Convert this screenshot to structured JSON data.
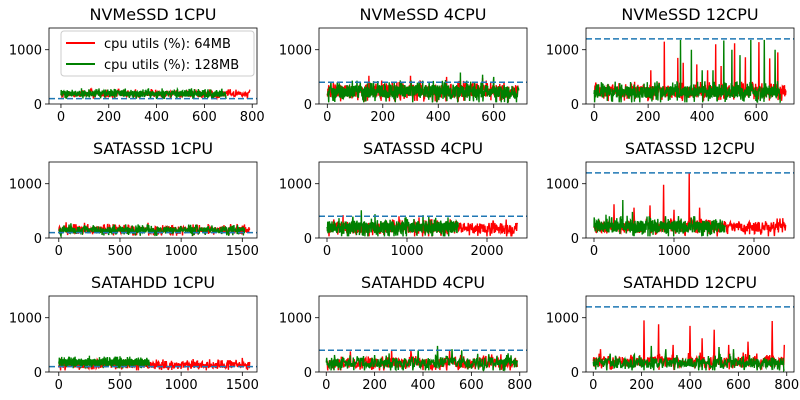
{
  "figure": {
    "legend": [
      {
        "label": "cpu utils (%): 64MB",
        "color": "#ff0000"
      },
      {
        "label": "cpu utils (%): 128MB",
        "color": "#008000"
      }
    ],
    "threshold_color": "#1f77b4"
  },
  "chart_data": [
    {
      "type": "line",
      "title": "NVMeSSD 1CPU",
      "xlim": [
        -50,
        820
      ],
      "ylim": [
        0,
        1400
      ],
      "xticks": [
        0,
        200,
        400,
        600,
        800
      ],
      "yticks": [
        0,
        1000
      ],
      "threshold": 100,
      "series": [
        {
          "name": "cpu utils (%): 64MB",
          "color": "#ff0000",
          "n": 790,
          "base": 185,
          "noise": 90,
          "spikes": []
        },
        {
          "name": "cpu utils (%): 128MB",
          "color": "#008000",
          "n": 690,
          "base": 190,
          "noise": 100,
          "spikes": []
        }
      ]
    },
    {
      "type": "line",
      "title": "NVMeSSD 4CPU",
      "xlim": [
        -30,
        720
      ],
      "ylim": [
        0,
        1400
      ],
      "xticks": [
        0,
        200,
        400,
        600
      ],
      "yticks": [
        0,
        1000
      ],
      "threshold": 400,
      "series": [
        {
          "name": "cpu utils (%): 64MB",
          "color": "#ff0000",
          "n": 690,
          "base": 240,
          "noise": 200,
          "spikes": [
            [
              150,
              520
            ],
            [
              300,
              520
            ],
            [
              430,
              500
            ],
            [
              560,
              480
            ]
          ]
        },
        {
          "name": "cpu utils (%): 128MB",
          "color": "#008000",
          "n": 690,
          "base": 230,
          "noise": 220,
          "spikes": [
            [
              480,
              580
            ],
            [
              560,
              540
            ],
            [
              600,
              500
            ]
          ]
        }
      ]
    },
    {
      "type": "line",
      "title": "NVMeSSD 12CPU",
      "xlim": [
        -30,
        740
      ],
      "ylim": [
        0,
        1400
      ],
      "xticks": [
        0,
        200,
        400,
        600
      ],
      "yticks": [
        0,
        1000
      ],
      "threshold": 1200,
      "series": [
        {
          "name": "cpu utils (%): 64MB",
          "color": "#ff0000",
          "n": 710,
          "base": 230,
          "noise": 180,
          "spikes": [
            [
              210,
              620
            ],
            [
              260,
              1150
            ],
            [
              310,
              850
            ],
            [
              330,
              760
            ],
            [
              380,
              730
            ],
            [
              420,
              620
            ],
            [
              450,
              1100
            ],
            [
              470,
              700
            ],
            [
              520,
              1120
            ],
            [
              560,
              860
            ],
            [
              610,
              1140
            ],
            [
              650,
              840
            ],
            [
              680,
              950
            ]
          ]
        },
        {
          "name": "cpu utils (%): 128MB",
          "color": "#008000",
          "n": 690,
          "base": 220,
          "noise": 200,
          "spikes": [
            [
              320,
              1180
            ],
            [
              360,
              1000
            ],
            [
              400,
              620
            ],
            [
              440,
              620
            ],
            [
              480,
              1170
            ],
            [
              510,
              1000
            ],
            [
              540,
              900
            ],
            [
              580,
              1180
            ],
            [
              630,
              1180
            ],
            [
              670,
              1000
            ],
            [
              690,
              900
            ]
          ]
        }
      ]
    },
    {
      "type": "line",
      "title": "SATASSD 1CPU",
      "xlim": [
        -80,
        1620
      ],
      "ylim": [
        0,
        1400
      ],
      "xticks": [
        0,
        500,
        1000,
        1500
      ],
      "yticks": [
        0,
        1000
      ],
      "threshold": 100,
      "series": [
        {
          "name": "cpu utils (%): 64MB",
          "color": "#ff0000",
          "n": 1560,
          "base": 150,
          "noise": 110,
          "spikes": [
            [
              60,
              290
            ],
            [
              210,
              280
            ],
            [
              400,
              260
            ],
            [
              730,
              280
            ],
            [
              1100,
              250
            ]
          ]
        },
        {
          "name": "cpu utils (%): 128MB",
          "color": "#008000",
          "n": 1520,
          "base": 145,
          "noise": 110,
          "spikes": [
            [
              100,
              270
            ],
            [
              650,
              250
            ]
          ]
        }
      ]
    },
    {
      "type": "line",
      "title": "SATASSD 4CPU",
      "xlim": [
        -100,
        2500
      ],
      "ylim": [
        0,
        1400
      ],
      "xticks": [
        0,
        1000,
        2000
      ],
      "yticks": [
        0,
        1000
      ],
      "threshold": 400,
      "series": [
        {
          "name": "cpu utils (%): 64MB",
          "color": "#ff0000",
          "n": 2380,
          "base": 180,
          "noise": 180,
          "spikes": [
            [
              200,
              420
            ],
            [
              900,
              400
            ],
            [
              1150,
              380
            ]
          ]
        },
        {
          "name": "cpu utils (%): 128MB",
          "color": "#008000",
          "n": 1640,
          "base": 200,
          "noise": 200,
          "spikes": [
            [
              430,
              510
            ],
            [
              600,
              440
            ],
            [
              1200,
              420
            ]
          ]
        }
      ]
    },
    {
      "type": "line",
      "title": "SATASSD 12CPU",
      "xlim": [
        -100,
        2500
      ],
      "ylim": [
        0,
        1400
      ],
      "xticks": [
        0,
        1000,
        2000
      ],
      "yticks": [
        0,
        1000
      ],
      "threshold": 1200,
      "series": [
        {
          "name": "cpu utils (%): 64MB",
          "color": "#ff0000",
          "n": 2400,
          "base": 200,
          "noise": 180,
          "spikes": [
            [
              250,
              620
            ],
            [
              500,
              560
            ],
            [
              700,
              600
            ],
            [
              870,
              980
            ],
            [
              1000,
              520
            ],
            [
              1190,
              1190
            ],
            [
              1320,
              560
            ]
          ]
        },
        {
          "name": "cpu utils (%): 128MB",
          "color": "#008000",
          "n": 1640,
          "base": 210,
          "noise": 200,
          "spikes": [
            [
              150,
              430
            ],
            [
              360,
              700
            ],
            [
              480,
              480
            ]
          ]
        }
      ]
    },
    {
      "type": "line",
      "title": "SATAHDD 1CPU",
      "xlim": [
        -80,
        1620
      ],
      "ylim": [
        0,
        1400
      ],
      "xticks": [
        0,
        500,
        1000,
        1500
      ],
      "yticks": [
        0,
        1000
      ],
      "threshold": 100,
      "series": [
        {
          "name": "cpu utils (%): 64MB",
          "color": "#ff0000",
          "n": 1560,
          "base": 130,
          "noise": 110,
          "spikes": [
            [
              20,
              250
            ],
            [
              800,
              230
            ],
            [
              1100,
              240
            ],
            [
              1500,
              260
            ]
          ]
        },
        {
          "name": "cpu utils (%): 128MB",
          "color": "#008000",
          "n": 740,
          "base": 175,
          "noise": 110,
          "spikes": [
            [
              250,
              300
            ],
            [
              500,
              290
            ]
          ]
        }
      ]
    },
    {
      "type": "line",
      "title": "SATAHDD 4CPU",
      "xlim": [
        -30,
        830
      ],
      "ylim": [
        0,
        1400
      ],
      "xticks": [
        0,
        200,
        400,
        600,
        800
      ],
      "yticks": [
        0,
        1000
      ],
      "threshold": 400,
      "series": [
        {
          "name": "cpu utils (%): 64MB",
          "color": "#ff0000",
          "n": 790,
          "base": 170,
          "noise": 160,
          "spikes": [
            [
              100,
              380
            ],
            [
              270,
              400
            ],
            [
              350,
              390
            ],
            [
              510,
              390
            ]
          ]
        },
        {
          "name": "cpu utils (%): 128MB",
          "color": "#008000",
          "n": 790,
          "base": 175,
          "noise": 170,
          "spikes": [
            [
              380,
              400
            ],
            [
              460,
              480
            ],
            [
              520,
              420
            ],
            [
              560,
              400
            ]
          ]
        }
      ]
    },
    {
      "type": "line",
      "title": "SATAHDD 12CPU",
      "xlim": [
        -30,
        830
      ],
      "ylim": [
        0,
        1400
      ],
      "xticks": [
        0,
        200,
        400,
        600,
        800
      ],
      "yticks": [
        0,
        1000
      ],
      "threshold": 1200,
      "series": [
        {
          "name": "cpu utils (%): 64MB",
          "color": "#ff0000",
          "n": 790,
          "base": 190,
          "noise": 170,
          "spikes": [
            [
              30,
              420
            ],
            [
              210,
              950
            ],
            [
              270,
              880
            ],
            [
              330,
              500
            ],
            [
              400,
              850
            ],
            [
              450,
              620
            ],
            [
              500,
              780
            ],
            [
              560,
              500
            ],
            [
              640,
              560
            ],
            [
              740,
              940
            ],
            [
              790,
              500
            ]
          ]
        },
        {
          "name": "cpu utils (%): 128MB",
          "color": "#008000",
          "n": 790,
          "base": 170,
          "noise": 170,
          "spikes": [
            [
              240,
              480
            ],
            [
              300,
              420
            ],
            [
              520,
              460
            ],
            [
              580,
              420
            ]
          ]
        }
      ]
    }
  ]
}
